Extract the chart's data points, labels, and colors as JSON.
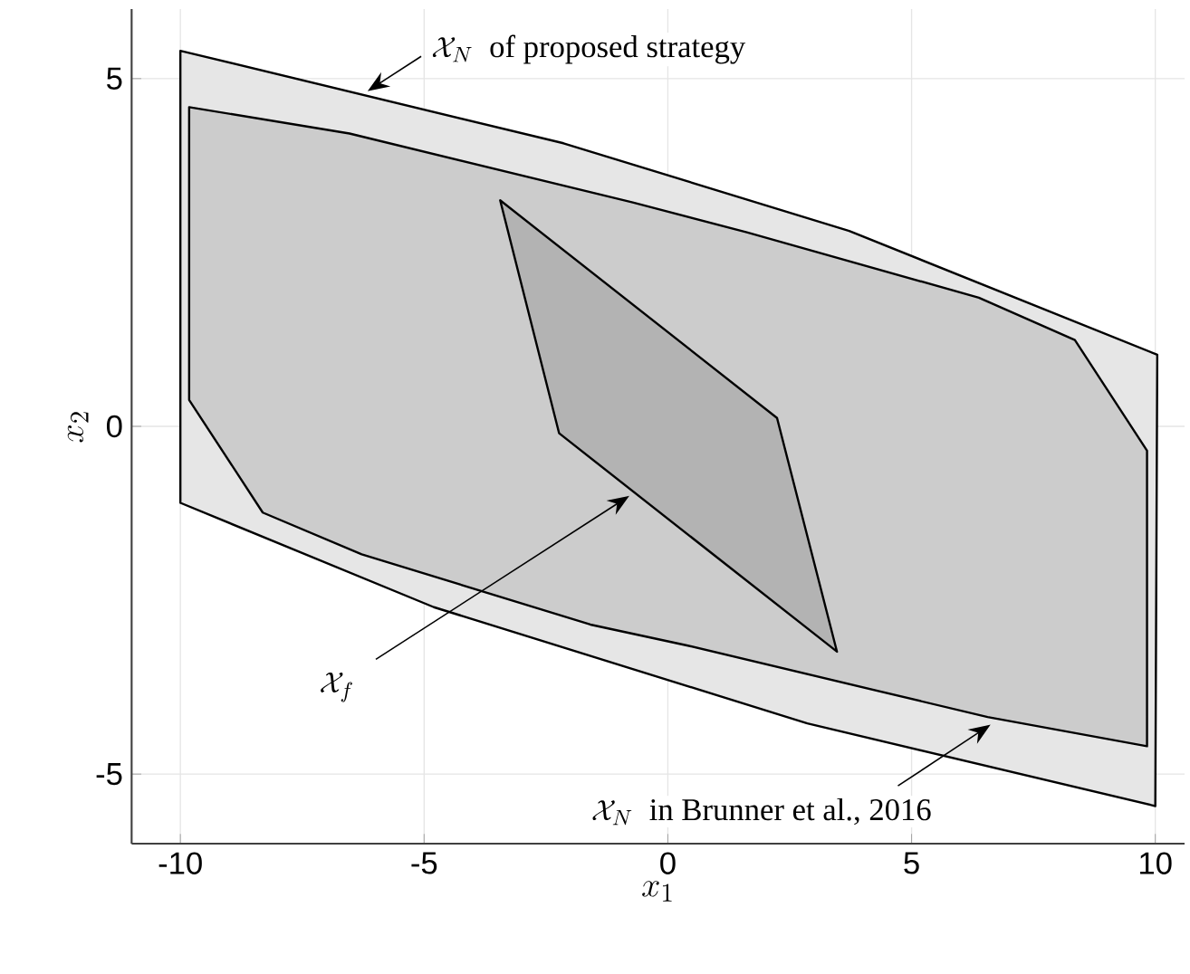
{
  "chart_data": {
    "type": "area",
    "xlabel": "x_1",
    "ylabel": "x_2",
    "xlim": [
      -11,
      10.6
    ],
    "ylim": [
      -6,
      6
    ],
    "xticks": [
      -10,
      -5,
      0,
      5,
      10
    ],
    "yticks": [
      -5,
      0,
      5
    ],
    "grid": true,
    "series": [
      {
        "color": "#e6e6e6",
        "x": [
          -10,
          -2.14,
          3.72,
          10.04,
          10,
          2.86,
          -4.8,
          -10
        ],
        "values": [
          5.4,
          4.07,
          2.81,
          1.03,
          -5.46,
          -4.27,
          -2.6,
          -1.1
        ]
      },
      {
        "color": "#cccccc",
        "x": [
          -9.82,
          -6.53,
          -0.72,
          1.62,
          6.38,
          8.35,
          9.83,
          9.83,
          6.56,
          0.39,
          -1.59,
          -6.28,
          -8.31,
          -9.82
        ],
        "values": [
          4.59,
          4.21,
          3.22,
          2.79,
          1.85,
          1.24,
          -0.35,
          -4.6,
          -4.18,
          -3.15,
          -2.85,
          -1.84,
          -1.24,
          0.38
        ]
      },
      {
        "color": "#b3b3b3",
        "x": [
          -3.44,
          2.24,
          3.47,
          -2.23
        ],
        "values": [
          3.25,
          0.12,
          -3.24,
          -0.1
        ]
      }
    ],
    "annotations": [
      {
        "text": "\\mathcal{X}_N\\ \\mbox{ of proposed strategy}",
        "x": -6.16,
        "y": 4.82
      },
      {
        "text": "\\mathcal{X}_f",
        "x": -0.79,
        "y": -1.0
      },
      {
        "text": "\\mathcal{X}_N\\ \\mbox{ in Brunner et al., 2016}",
        "x": 6.62,
        "y": -4.29
      }
    ]
  }
}
